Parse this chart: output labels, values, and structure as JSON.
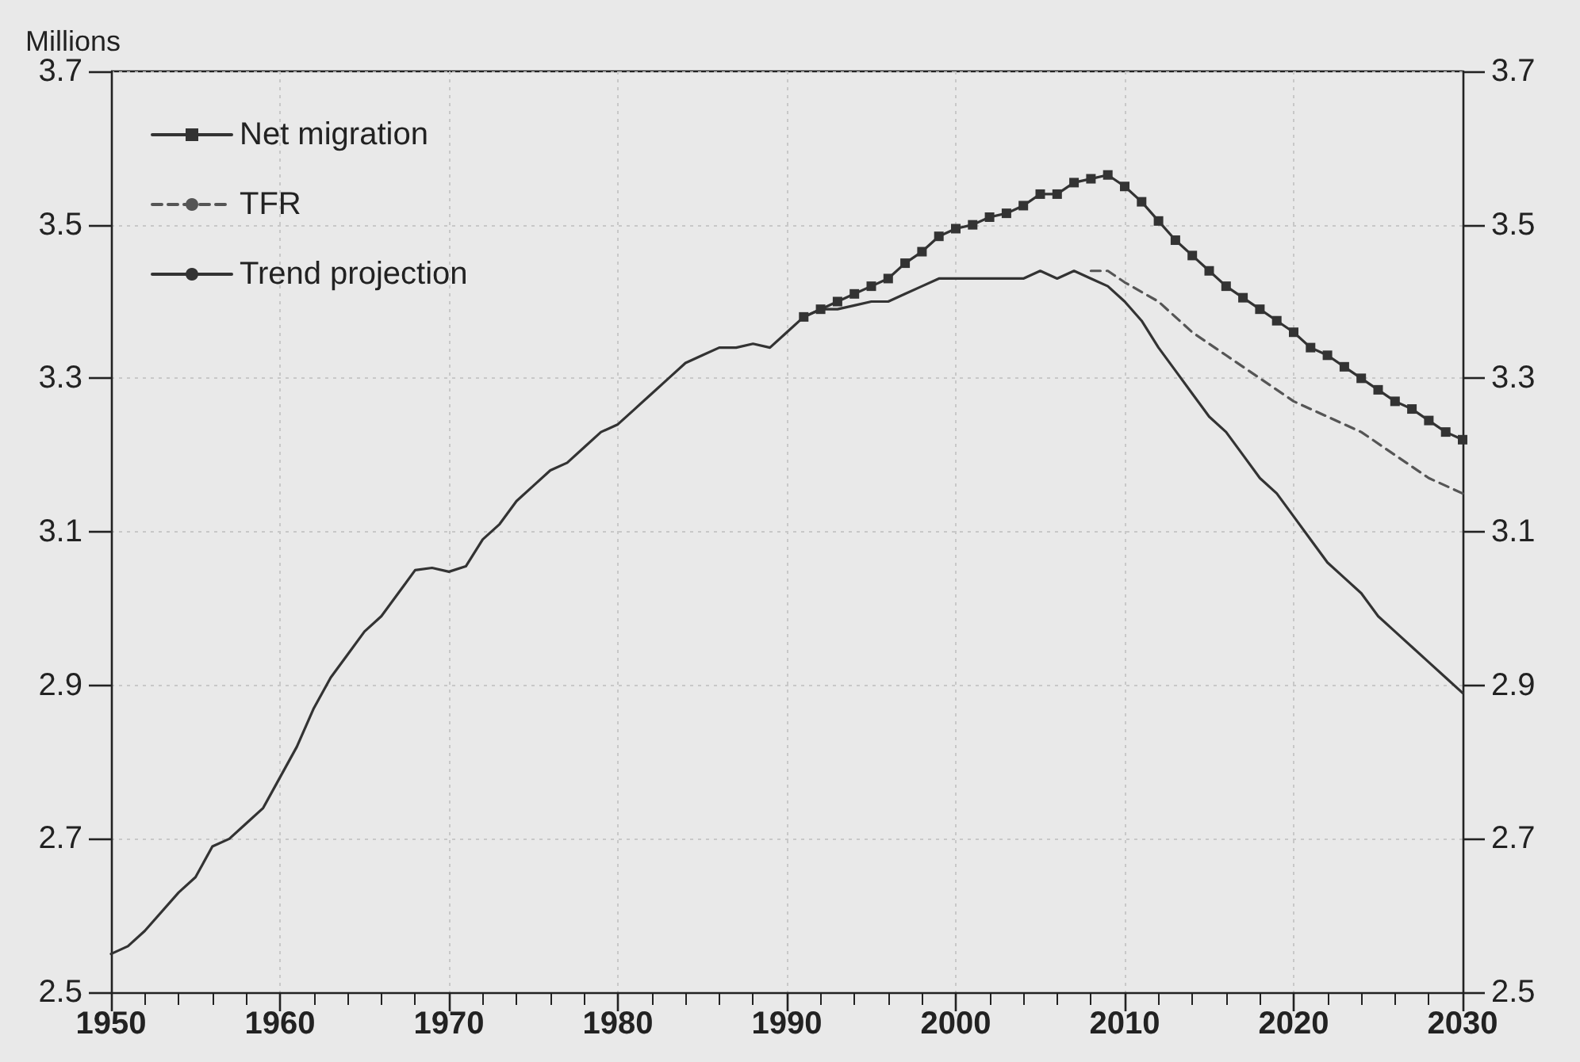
{
  "chart_data": {
    "type": "line",
    "ylabel": "Millions",
    "xlim": [
      1950,
      2030
    ],
    "xticks": [
      1950,
      1960,
      1970,
      1980,
      1990,
      2000,
      2010,
      2020,
      2030
    ],
    "ylim": [
      2.5,
      3.7
    ],
    "yticks": [
      2.5,
      2.7,
      2.9,
      3.1,
      3.3,
      3.5,
      3.7
    ],
    "y2lim": [
      2.5,
      3.7
    ],
    "y2ticks": [
      2.5,
      2.7,
      2.9,
      3.1,
      3.3,
      3.5,
      3.7
    ],
    "grid": true,
    "legend": "top left",
    "series": [
      {
        "name": "Net migration",
        "color": "#333333",
        "marker": "square",
        "line_style": "solid",
        "x": [
          1991,
          1992,
          1993,
          1994,
          1995,
          1996,
          1997,
          1998,
          1999,
          2000,
          2001,
          2002,
          2003,
          2004,
          2005,
          2006,
          2007,
          2008,
          2009,
          2010,
          2011,
          2012,
          2013,
          2014,
          2015,
          2016,
          2017,
          2018,
          2019,
          2020,
          2021,
          2022,
          2023,
          2024,
          2025,
          2026,
          2027,
          2028,
          2029,
          2030
        ],
        "values": [
          3.38,
          3.39,
          3.4,
          3.41,
          3.42,
          3.43,
          3.45,
          3.465,
          3.485,
          3.495,
          3.5,
          3.51,
          3.515,
          3.525,
          3.54,
          3.54,
          3.555,
          3.56,
          3.565,
          3.55,
          3.53,
          3.505,
          3.48,
          3.46,
          3.44,
          3.42,
          3.405,
          3.39,
          3.375,
          3.36,
          3.34,
          3.33,
          3.315,
          3.3,
          3.285,
          3.27,
          3.26,
          3.245,
          3.23,
          3.22
        ]
      },
      {
        "name": "TFR",
        "color": "#555555",
        "marker": "none",
        "line_style": "dashed",
        "x": [
          2008,
          2009,
          2010,
          2012,
          2014,
          2016,
          2018,
          2020,
          2022,
          2024,
          2026,
          2028,
          2030
        ],
        "values": [
          3.44,
          3.44,
          3.425,
          3.4,
          3.36,
          3.33,
          3.3,
          3.27,
          3.25,
          3.23,
          3.2,
          3.17,
          3.15
        ]
      },
      {
        "name": "Trend projection",
        "color": "#333333",
        "marker": "none",
        "line_style": "solid",
        "x": [
          1950,
          1951,
          1952,
          1954,
          1955,
          1956,
          1957,
          1958,
          1959,
          1960,
          1961,
          1962,
          1963,
          1964,
          1965,
          1966,
          1967,
          1968,
          1969,
          1970,
          1971,
          1972,
          1973,
          1974,
          1975,
          1976,
          1977,
          1978,
          1979,
          1980,
          1981,
          1982,
          1983,
          1984,
          1985,
          1986,
          1987,
          1988,
          1989,
          1990,
          1991,
          1992,
          1993,
          1994,
          1995,
          1996,
          1997,
          1998,
          1999,
          2000,
          2001,
          2002,
          2003,
          2004,
          2005,
          2006,
          2007,
          2008,
          2009,
          2010,
          2011,
          2012,
          2013,
          2014,
          2015,
          2016,
          2017,
          2018,
          2019,
          2020,
          2021,
          2022,
          2023,
          2024,
          2025,
          2026,
          2027,
          2028,
          2029,
          2030
        ],
        "values": [
          2.55,
          2.56,
          2.58,
          2.63,
          2.65,
          2.69,
          2.7,
          2.72,
          2.74,
          2.78,
          2.82,
          2.87,
          2.91,
          2.94,
          2.97,
          2.99,
          3.02,
          3.05,
          3.053,
          3.048,
          3.055,
          3.09,
          3.11,
          3.14,
          3.16,
          3.18,
          3.19,
          3.21,
          3.23,
          3.24,
          3.26,
          3.28,
          3.3,
          3.32,
          3.33,
          3.34,
          3.34,
          3.345,
          3.34,
          3.36,
          3.38,
          3.39,
          3.39,
          3.395,
          3.4,
          3.4,
          3.41,
          3.42,
          3.43,
          3.43,
          3.43,
          3.43,
          3.43,
          3.43,
          3.44,
          3.43,
          3.44,
          3.43,
          3.42,
          3.4,
          3.375,
          3.34,
          3.31,
          3.28,
          3.25,
          3.23,
          3.2,
          3.17,
          3.15,
          3.12,
          3.09,
          3.06,
          3.04,
          3.02,
          2.99,
          2.97,
          2.95,
          2.93,
          2.91,
          2.89
        ]
      }
    ]
  }
}
